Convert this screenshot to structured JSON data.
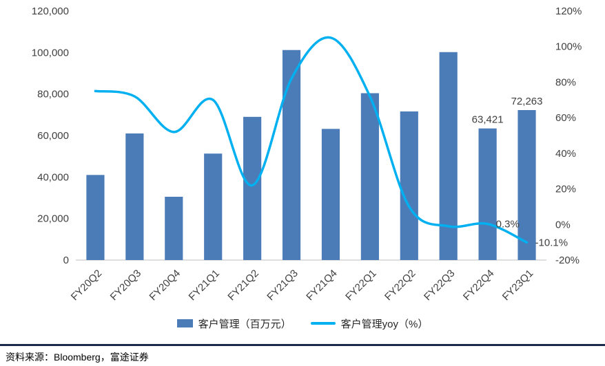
{
  "chart_data": {
    "type": "combo",
    "title": "",
    "legend_position": "bottom",
    "grid": false,
    "categories": [
      "FY20Q2",
      "FY20Q3",
      "FY20Q4",
      "FY21Q1",
      "FY21Q2",
      "FY21Q3",
      "FY21Q4",
      "FY22Q1",
      "FY22Q2",
      "FY22Q3",
      "FY22Q4",
      "FY23Q1"
    ],
    "series": [
      {
        "name": "客户管理（百万元）",
        "type": "bar",
        "axis": "left",
        "color": "#4C7CB8",
        "values": [
          41000,
          61000,
          30500,
          51300,
          69000,
          101200,
          63200,
          80400,
          71600,
          100200,
          63421,
          72263
        ]
      },
      {
        "name": "客户管理yoy（%）",
        "type": "line",
        "axis": "right",
        "color": "#00B0F0",
        "values": [
          75,
          72,
          52,
          70,
          22,
          82,
          105,
          72,
          10,
          -1,
          0.3,
          -10.1
        ]
      }
    ],
    "left_axis": {
      "min": 0,
      "max": 120000,
      "step": 20000,
      "tick_labels": [
        "120,000",
        "100,000",
        "80,000",
        "60,000",
        "40,000",
        "20,000",
        "0"
      ]
    },
    "right_axis": {
      "min": -20,
      "max": 120,
      "step": 20,
      "tick_labels": [
        "120%",
        "100%",
        "80%",
        "60%",
        "40%",
        "20%",
        "0%",
        "-20%"
      ]
    },
    "bar_labels": [
      {
        "index": 10,
        "text": "63,421"
      },
      {
        "index": 11,
        "text": "72,263"
      }
    ],
    "line_labels": [
      {
        "index": 10,
        "text": "0.3%"
      },
      {
        "index": 11,
        "text": "-10.1%"
      }
    ]
  },
  "footer": {
    "source": "资料来源：Bloomberg，富途证券"
  }
}
